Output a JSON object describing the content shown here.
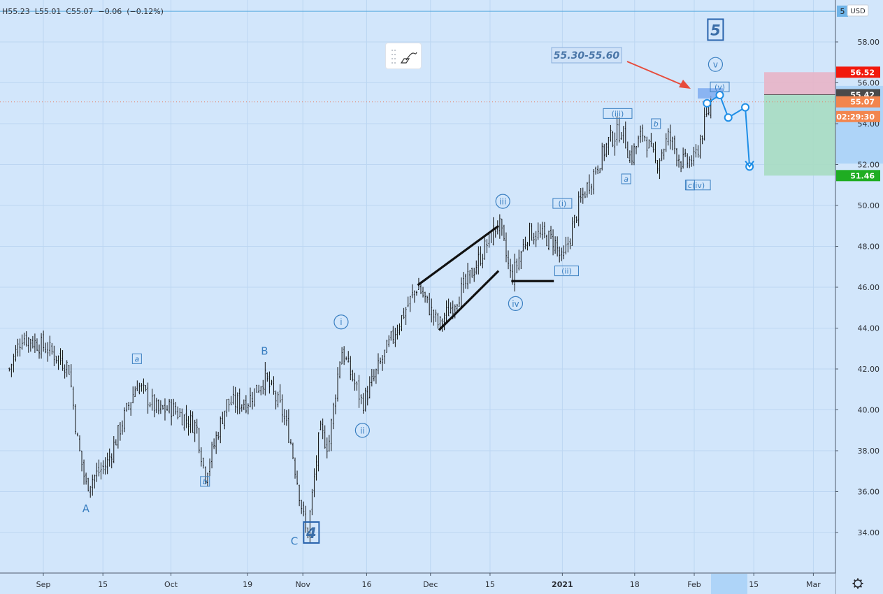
{
  "ohlc_text": "H55.23  L55.01  C55.07  −0.06  (−0.12%)",
  "currency": "USD",
  "top_price_partial": "5",
  "colors": {
    "background": "#d2e6fb",
    "candle": "#111111",
    "wave_label": "#3a7fc1",
    "target_zone": "#7eaaf0",
    "arrow": "#e74c3c",
    "stop_zone": "#e8b4c6",
    "profit_zone": "#a7dcc2",
    "badge_red": "#f2180c",
    "badge_gray": "#4a4a4a",
    "badge_orange": "#f2854e",
    "badge_green": "#1fad22"
  },
  "chart_data": {
    "type": "candlestick",
    "y_axis": {
      "ticks": [
        "58.00",
        "56.00",
        "54.00",
        "52.00",
        "50.00",
        "48.00",
        "46.00",
        "44.00",
        "42.00",
        "40.00",
        "38.00",
        "36.00",
        "34.00"
      ],
      "range": [
        32.2,
        60.2
      ]
    },
    "x_axis": {
      "ticks": [
        "Sep",
        "15",
        "Oct",
        "19",
        "Nov",
        "16",
        "Dec",
        "15",
        "2021",
        "18",
        "Feb",
        "15",
        "Mar"
      ]
    },
    "price_points": [
      {
        "date": "Aug 24",
        "price": 42.0
      },
      {
        "date": "Aug 27",
        "price": 43.6
      },
      {
        "date": "Sep 2",
        "price": 43.0
      },
      {
        "date": "Sep 7",
        "price": 42.1
      },
      {
        "date": "Sep 9",
        "price": 38.5
      },
      {
        "date": "Sep 11",
        "price": 36.3
      },
      {
        "date": "Sep 16",
        "price": 37.4
      },
      {
        "date": "Sep 23",
        "price": 41.3
      },
      {
        "date": "Sep 28",
        "price": 39.9
      },
      {
        "date": "Oct 1",
        "price": 40.1
      },
      {
        "date": "Oct 7",
        "price": 39.2
      },
      {
        "date": "Oct 9",
        "price": 36.8
      },
      {
        "date": "Oct 14",
        "price": 40.3
      },
      {
        "date": "Oct 19",
        "price": 40.4
      },
      {
        "date": "Oct 23",
        "price": 41.6
      },
      {
        "date": "Oct 27",
        "price": 40.0
      },
      {
        "date": "Oct 29",
        "price": 38.6
      },
      {
        "date": "Nov 2",
        "price": 33.7
      },
      {
        "date": "Nov 5",
        "price": 39.0
      },
      {
        "date": "Nov 7",
        "price": 38.2
      },
      {
        "date": "Nov 10",
        "price": 43.0
      },
      {
        "date": "Nov 15",
        "price": 40.3
      },
      {
        "date": "Nov 23",
        "price": 44.0
      },
      {
        "date": "Nov 28",
        "price": 46.1
      },
      {
        "date": "Dec 3",
        "price": 44.1
      },
      {
        "date": "Dec 10",
        "price": 46.4
      },
      {
        "date": "Dec 17",
        "price": 49.2
      },
      {
        "date": "Dec 20",
        "price": 46.4
      },
      {
        "date": "Dec 24",
        "price": 48.7
      },
      {
        "date": "Dec 30",
        "price": 48.3
      },
      {
        "date": "Jan 1",
        "price": 47.2
      },
      {
        "date": "Jan 5",
        "price": 50.1
      },
      {
        "date": "Jan 12",
        "price": 53.2
      },
      {
        "date": "Jan 15",
        "price": 53.7
      },
      {
        "date": "Jan 17",
        "price": 52.3
      },
      {
        "date": "Jan 20",
        "price": 53.6
      },
      {
        "date": "Jan 23",
        "price": 52.0
      },
      {
        "date": "Jan 26",
        "price": 53.4
      },
      {
        "date": "Jan 29",
        "price": 52.1
      },
      {
        "date": "Feb 1",
        "price": 52.2
      },
      {
        "date": "Feb 5",
        "price": 55.1
      }
    ],
    "wave_labels": [
      {
        "text": "A",
        "style": "plain",
        "date": "Sep 11",
        "price": 35.0
      },
      {
        "text": "a",
        "style": "square",
        "date": "Sep 23",
        "price": 42.5
      },
      {
        "text": "b",
        "style": "square",
        "date": "Oct 9",
        "price": 36.5
      },
      {
        "text": "B",
        "style": "plain",
        "date": "Oct 23",
        "price": 42.7
      },
      {
        "text": "C",
        "style": "plain",
        "date": "Oct 30",
        "price": 33.4
      },
      {
        "text": "4",
        "style": "bigsquare",
        "date": "Nov 3",
        "price": 34.0
      },
      {
        "text": "i",
        "style": "circle",
        "date": "Nov 10",
        "price": 44.3
      },
      {
        "text": "ii",
        "style": "circle",
        "date": "Nov 15",
        "price": 39.0
      },
      {
        "text": "iii",
        "style": "circle",
        "date": "Dec 18",
        "price": 50.2
      },
      {
        "text": "iv",
        "style": "circle",
        "date": "Dec 21",
        "price": 45.2
      },
      {
        "text": "(i)",
        "style": "square",
        "date": "Jan 1",
        "price": 50.1
      },
      {
        "text": "(ii)",
        "style": "square",
        "date": "Jan 2",
        "price": 46.8
      },
      {
        "text": "(iii)",
        "style": "square",
        "date": "Jan 14",
        "price": 54.5
      },
      {
        "text": "a",
        "style": "square",
        "date": "Jan 16",
        "price": 51.3
      },
      {
        "text": "b",
        "style": "square",
        "date": "Jan 23",
        "price": 54.0
      },
      {
        "text": "c",
        "style": "square",
        "date": "Jan 31",
        "price": 51.0
      },
      {
        "text": "(iv)",
        "style": "square",
        "date": "Feb 2",
        "price": 51.0
      },
      {
        "text": "v",
        "style": "circle",
        "date": "Feb 6",
        "price": 56.9
      },
      {
        "text": "(v)",
        "style": "square",
        "date": "Feb 7",
        "price": 55.8
      },
      {
        "text": "5",
        "style": "bigsquare",
        "date": "Feb 6",
        "price": 58.6
      }
    ],
    "target_zone": {
      "label": "55.30-55.60",
      "from": 55.3,
      "to": 55.6
    },
    "projected_path": [
      {
        "date": "Feb 4",
        "price": 55.0
      },
      {
        "date": "Feb 7",
        "price": 55.4
      },
      {
        "date": "Feb 9",
        "price": 54.3
      },
      {
        "date": "Feb 13",
        "price": 54.8
      },
      {
        "date": "Feb 14",
        "price": 51.9
      }
    ],
    "wedge_lines": [
      {
        "from": {
          "date": "Nov 28",
          "price": 46.1
        },
        "to": {
          "date": "Dec 17",
          "price": 49.0
        }
      },
      {
        "from": {
          "date": "Dec 3",
          "price": 43.9
        },
        "to": {
          "date": "Dec 17",
          "price": 46.8
        }
      },
      {
        "from": {
          "date": "Dec 20",
          "price": 46.3
        },
        "to": {
          "date": "Dec 30",
          "price": 46.3
        }
      }
    ],
    "position": {
      "entry": 55.42,
      "stop": 56.52,
      "target": 51.46
    },
    "price_badges": [
      {
        "label": "56.52",
        "price": 56.52,
        "color": "#f2180c"
      },
      {
        "label": "55.42",
        "price": 55.42,
        "color": "#4a4a4a"
      },
      {
        "label": "55.07",
        "price": 55.07,
        "color": "#f2854e"
      },
      {
        "label": "02:29:30",
        "price": 54.35,
        "color": "#f2854e"
      },
      {
        "label": "51.46",
        "price": 51.46,
        "color": "#1fad22"
      }
    ],
    "last_price": 55.07,
    "top_line_price": 59.5
  }
}
